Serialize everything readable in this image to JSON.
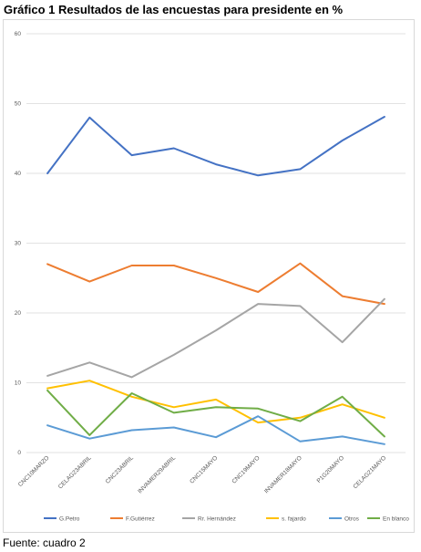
{
  "title": "Gráfico 1 Resultados de las encuestas para presidente en %",
  "source": "Fuente: cuadro 2",
  "chart_data": {
    "type": "line",
    "title": "",
    "xlabel": "",
    "ylabel": "",
    "ylim": [
      0,
      60
    ],
    "yticks": [
      0,
      10,
      20,
      30,
      40,
      50,
      60
    ],
    "grid": true,
    "legend": "bottom",
    "categories": [
      "CNC10MARZO",
      "CELAG23ABRIL",
      "CNC23ABRIL",
      "INVAMER29ABRIL",
      "CNC15MAYO",
      "CNC19MAYO",
      "INVAMER18MAYO",
      "P1G20MAYO",
      "CELAG21MAYO"
    ],
    "series": [
      {
        "name": "G.Petro",
        "color": "#4472c4",
        "values": [
          40.0,
          48.0,
          42.6,
          43.6,
          41.3,
          39.7,
          40.6,
          44.7,
          48.1
        ]
      },
      {
        "name": "F.Gutiérrez",
        "color": "#ed7d31",
        "values": [
          27.0,
          24.5,
          26.8,
          26.8,
          25.0,
          23.0,
          27.1,
          22.4,
          21.3
        ]
      },
      {
        "name": "Rr. Hernández",
        "color": "#a5a5a5",
        "values": [
          11.0,
          12.9,
          10.8,
          14.0,
          17.5,
          21.3,
          21.0,
          15.8,
          22.0
        ]
      },
      {
        "name": "s. fajardo",
        "color": "#ffc000",
        "values": [
          9.2,
          10.3,
          8.0,
          6.5,
          7.6,
          4.3,
          5.0,
          6.9,
          5.0
        ]
      },
      {
        "name": "Otros",
        "color": "#5b9bd5",
        "values": [
          3.9,
          2.0,
          3.2,
          3.6,
          2.2,
          5.2,
          1.6,
          2.3,
          1.2
        ]
      },
      {
        "name": "En blanco",
        "color": "#70ad47",
        "values": [
          8.9,
          2.5,
          8.5,
          5.7,
          6.5,
          6.3,
          4.5,
          8.0,
          2.3
        ]
      }
    ]
  }
}
